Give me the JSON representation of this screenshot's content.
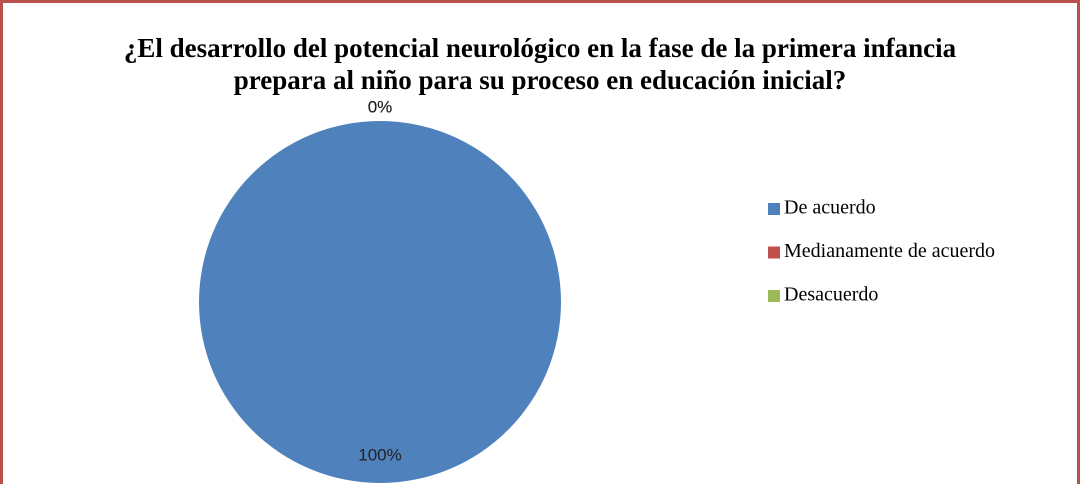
{
  "chart_data": {
    "type": "pie",
    "title": [
      "¿El desarrollo del potencial neurológico en la fase de la primera infancia",
      "prepara al niño para su proceso en educación inicial?"
    ],
    "categories": [
      "De acuerdo",
      "Medianamente de acuerdo",
      "Desacuerdo"
    ],
    "values": [
      100,
      0,
      0
    ],
    "value_labels": [
      "100%",
      "0%",
      "0%"
    ],
    "colors": [
      "#4f81bd",
      "#c0504d",
      "#9bbb59"
    ],
    "legend": "right"
  }
}
